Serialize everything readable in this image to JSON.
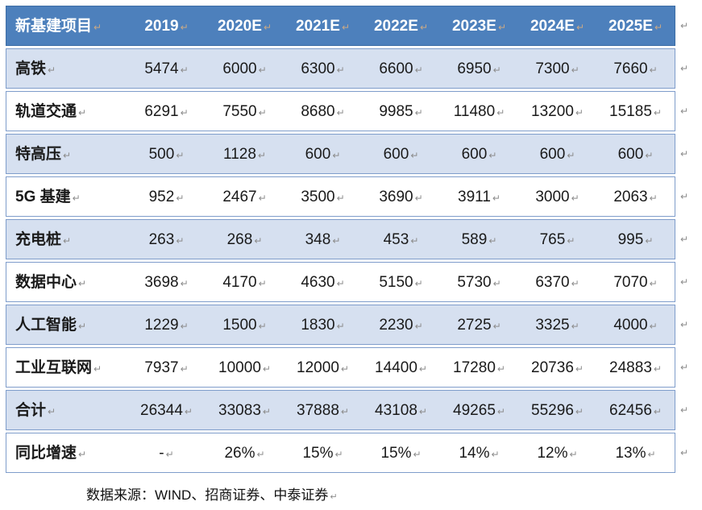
{
  "table": {
    "columns": [
      "新基建项目",
      "2019",
      "2020E",
      "2021E",
      "2022E",
      "2023E",
      "2024E",
      "2025E"
    ],
    "rows": [
      {
        "label": "高铁",
        "values": [
          "5474",
          "6000",
          "6300",
          "6600",
          "6950",
          "7300",
          "7660"
        ]
      },
      {
        "label": "轨道交通",
        "values": [
          "6291",
          "7550",
          "8680",
          "9985",
          "11480",
          "13200",
          "15185"
        ]
      },
      {
        "label": "特高压",
        "values": [
          "500",
          "1128",
          "600",
          "600",
          "600",
          "600",
          "600"
        ]
      },
      {
        "label": "5G 基建",
        "values": [
          "952",
          "2467",
          "3500",
          "3690",
          "3911",
          "3000",
          "2063"
        ]
      },
      {
        "label": "充电桩",
        "values": [
          "263",
          "268",
          "348",
          "453",
          "589",
          "765",
          "995"
        ]
      },
      {
        "label": "数据中心",
        "values": [
          "3698",
          "4170",
          "4630",
          "5150",
          "5730",
          "6370",
          "7070"
        ]
      },
      {
        "label": "人工智能",
        "values": [
          "1229",
          "1500",
          "1830",
          "2230",
          "2725",
          "3325",
          "4000"
        ]
      },
      {
        "label": "工业互联网",
        "values": [
          "7937",
          "10000",
          "12000",
          "14400",
          "17280",
          "20736",
          "24883"
        ]
      },
      {
        "label": "合计",
        "values": [
          "26344",
          "33083",
          "37888",
          "43108",
          "49265",
          "55296",
          "62456"
        ]
      },
      {
        "label": "同比增速",
        "values": [
          "-",
          "26%",
          "15%",
          "15%",
          "14%",
          "12%",
          "13%"
        ]
      }
    ]
  },
  "formatting_mark": "↵",
  "footer": {
    "source_note": "数据来源：WIND、招商证券、中泰证券"
  },
  "colors": {
    "header_bg": "#4d80bc",
    "header_text": "#ffffff",
    "header_border": "#3d6da5",
    "band_bg": "#d6e0f0",
    "row_border": "#7f9dcb",
    "body_text": "#1a1a1a",
    "mark_color": "#8c8c8c",
    "mark_header_color": "#c9a886"
  }
}
